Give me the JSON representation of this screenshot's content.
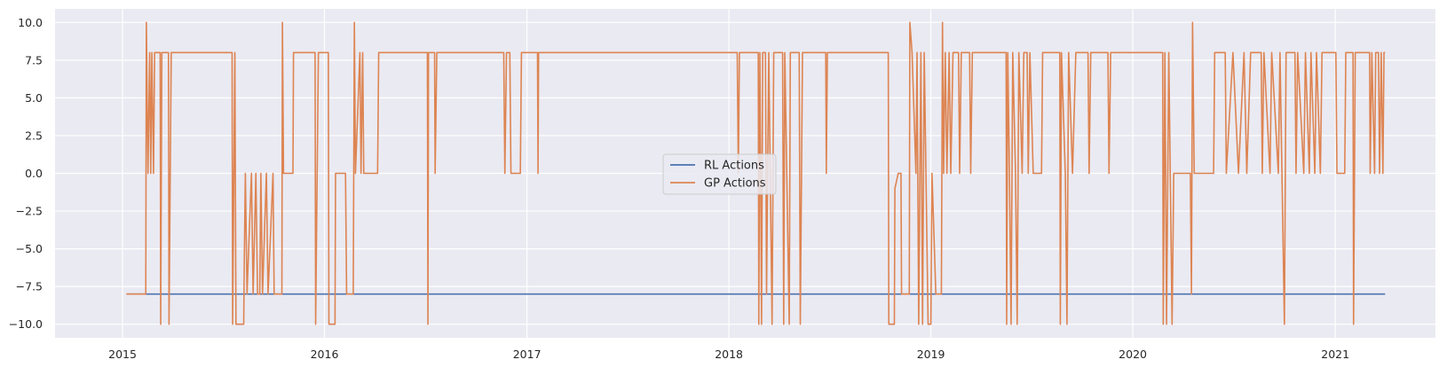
{
  "chart_data": {
    "type": "line",
    "title": "",
    "xlabel": "",
    "ylabel": "",
    "grid": true,
    "legend_position": "center",
    "x_ticks": [
      "2015",
      "2016",
      "2017",
      "2018",
      "2019",
      "2020",
      "2021"
    ],
    "y_ticks": [
      "10.0",
      "7.5",
      "5.0",
      "2.5",
      "0.0",
      "−2.5",
      "−5.0",
      "−7.5",
      "−10.0"
    ],
    "xlim": [
      "2014-09-01",
      "2021-07-01"
    ],
    "ylim": [
      -10.9,
      10.9
    ],
    "series": [
      {
        "name": "RL Actions",
        "color": "#4c72b0",
        "points": [
          [
            "2015-01-08",
            -8
          ],
          [
            "2021-04-01",
            -8
          ]
        ]
      },
      {
        "name": "GP Actions",
        "color": "#dd8452",
        "points": [
          [
            "2015-01-08",
            -8
          ],
          [
            "2015-02-12",
            -8
          ],
          [
            "2015-02-13",
            10
          ],
          [
            "2015-02-16",
            0
          ],
          [
            "2015-02-19",
            8
          ],
          [
            "2015-02-21",
            0
          ],
          [
            "2015-02-23",
            8
          ],
          [
            "2015-02-26",
            0
          ],
          [
            "2015-02-28",
            8
          ],
          [
            "2015-03-10",
            8
          ],
          [
            "2015-03-11",
            -10
          ],
          [
            "2015-03-13",
            8
          ],
          [
            "2015-03-25",
            8
          ],
          [
            "2015-03-26",
            -10
          ],
          [
            "2015-03-30",
            8
          ],
          [
            "2015-07-18",
            8
          ],
          [
            "2015-07-19",
            -10
          ],
          [
            "2015-07-23",
            8
          ],
          [
            "2015-07-25",
            -10
          ],
          [
            "2015-08-08",
            -10
          ],
          [
            "2015-08-09",
            -6
          ],
          [
            "2015-08-11",
            0
          ],
          [
            "2015-08-14",
            -8
          ],
          [
            "2015-08-22",
            0
          ],
          [
            "2015-08-25",
            -8
          ],
          [
            "2015-08-30",
            0
          ],
          [
            "2015-09-02",
            -8
          ],
          [
            "2015-09-06",
            -8
          ],
          [
            "2015-09-08",
            0
          ],
          [
            "2015-09-11",
            -8
          ],
          [
            "2015-09-18",
            0
          ],
          [
            "2015-09-21",
            -8
          ],
          [
            "2015-09-30",
            0
          ],
          [
            "2015-10-02",
            -8
          ],
          [
            "2015-10-16",
            -8
          ],
          [
            "2015-10-17",
            10
          ],
          [
            "2015-10-19",
            0
          ],
          [
            "2015-11-05",
            0
          ],
          [
            "2015-11-06",
            8
          ],
          [
            "2015-12-15",
            8
          ],
          [
            "2015-12-16",
            -10
          ],
          [
            "2015-12-21",
            8
          ],
          [
            "2016-01-08",
            8
          ],
          [
            "2016-01-09",
            -10
          ],
          [
            "2016-01-20",
            -10
          ],
          [
            "2016-01-21",
            0
          ],
          [
            "2016-02-08",
            0
          ],
          [
            "2016-02-10",
            -8
          ],
          [
            "2016-02-22",
            -8
          ],
          [
            "2016-02-24",
            10
          ],
          [
            "2016-02-26",
            0
          ],
          [
            "2016-03-05",
            8
          ],
          [
            "2016-03-07",
            0
          ],
          [
            "2016-03-10",
            8
          ],
          [
            "2016-03-12",
            0
          ],
          [
            "2016-04-06",
            0
          ],
          [
            "2016-04-08",
            8
          ],
          [
            "2016-07-05",
            8
          ],
          [
            "2016-07-06",
            -10
          ],
          [
            "2016-07-07",
            8
          ],
          [
            "2016-07-18",
            8
          ],
          [
            "2016-07-19",
            0
          ],
          [
            "2016-07-22",
            8
          ],
          [
            "2016-11-20",
            8
          ],
          [
            "2016-11-22",
            0
          ],
          [
            "2016-11-25",
            8
          ],
          [
            "2016-12-01",
            8
          ],
          [
            "2016-12-03",
            0
          ],
          [
            "2016-12-20",
            0
          ],
          [
            "2016-12-22",
            8
          ],
          [
            "2017-01-20",
            8
          ],
          [
            "2017-01-21",
            0
          ],
          [
            "2017-01-22",
            8
          ],
          [
            "2018-01-16",
            8
          ],
          [
            "2018-01-18",
            0
          ],
          [
            "2018-01-20",
            8
          ],
          [
            "2018-02-23",
            8
          ],
          [
            "2018-02-24",
            -10
          ],
          [
            "2018-02-26",
            8
          ],
          [
            "2018-03-01",
            -10
          ],
          [
            "2018-03-03",
            8
          ],
          [
            "2018-03-08",
            8
          ],
          [
            "2018-03-10",
            -8
          ],
          [
            "2018-03-14",
            8
          ],
          [
            "2018-03-20",
            -10
          ],
          [
            "2018-03-23",
            8
          ],
          [
            "2018-04-08",
            8
          ],
          [
            "2018-04-10",
            -10
          ],
          [
            "2018-04-12",
            8
          ],
          [
            "2018-04-20",
            -10
          ],
          [
            "2018-04-22",
            8
          ],
          [
            "2018-05-08",
            8
          ],
          [
            "2018-05-10",
            -10
          ],
          [
            "2018-05-14",
            8
          ],
          [
            "2018-06-25",
            8
          ],
          [
            "2018-06-26",
            0
          ],
          [
            "2018-06-28",
            8
          ],
          [
            "2018-10-16",
            8
          ],
          [
            "2018-10-17",
            -10
          ],
          [
            "2018-10-27",
            -10
          ],
          [
            "2018-10-28",
            -1
          ],
          [
            "2018-11-03",
            0
          ],
          [
            "2018-11-08",
            0
          ],
          [
            "2018-11-09",
            -8
          ],
          [
            "2018-11-23",
            -8
          ],
          [
            "2018-11-24",
            10
          ],
          [
            "2018-11-28",
            8
          ],
          [
            "2018-12-05",
            0
          ],
          [
            "2018-12-07",
            8
          ],
          [
            "2018-12-10",
            -10
          ],
          [
            "2018-12-14",
            8
          ],
          [
            "2018-12-17",
            -10
          ],
          [
            "2018-12-20",
            8
          ],
          [
            "2018-12-27",
            -10
          ],
          [
            "2019-01-01",
            -10
          ],
          [
            "2019-01-03",
            0
          ],
          [
            "2019-01-10",
            -8
          ],
          [
            "2019-01-20",
            -8
          ],
          [
            "2019-01-22",
            10
          ],
          [
            "2019-01-24",
            0
          ],
          [
            "2019-01-27",
            8
          ],
          [
            "2019-01-30",
            0
          ],
          [
            "2019-02-03",
            8
          ],
          [
            "2019-02-06",
            0
          ],
          [
            "2019-02-10",
            8
          ],
          [
            "2019-02-20",
            8
          ],
          [
            "2019-02-22",
            0
          ],
          [
            "2019-02-25",
            8
          ],
          [
            "2019-03-12",
            8
          ],
          [
            "2019-03-14",
            0
          ],
          [
            "2019-03-17",
            8
          ],
          [
            "2019-05-17",
            8
          ],
          [
            "2019-05-18",
            -10
          ],
          [
            "2019-05-20",
            8
          ],
          [
            "2019-05-23",
            0
          ],
          [
            "2019-05-26",
            -10
          ],
          [
            "2019-05-29",
            8
          ],
          [
            "2019-06-03",
            0
          ],
          [
            "2019-06-06",
            -10
          ],
          [
            "2019-06-09",
            8
          ],
          [
            "2019-06-15",
            0
          ],
          [
            "2019-06-18",
            8
          ],
          [
            "2019-06-24",
            8
          ],
          [
            "2019-06-26",
            0
          ],
          [
            "2019-06-29",
            8
          ],
          [
            "2019-07-05",
            0
          ],
          [
            "2019-07-20",
            0
          ],
          [
            "2019-07-22",
            8
          ],
          [
            "2019-08-22",
            8
          ],
          [
            "2019-08-23",
            -10
          ],
          [
            "2019-08-25",
            8
          ],
          [
            "2019-09-01",
            0
          ],
          [
            "2019-09-04",
            -10
          ],
          [
            "2019-09-07",
            8
          ],
          [
            "2019-09-14",
            0
          ],
          [
            "2019-09-20",
            8
          ],
          [
            "2019-10-12",
            8
          ],
          [
            "2019-10-14",
            0
          ],
          [
            "2019-10-17",
            8
          ],
          [
            "2019-11-17",
            8
          ],
          [
            "2019-11-19",
            0
          ],
          [
            "2019-11-22",
            8
          ],
          [
            "2020-02-24",
            8
          ],
          [
            "2020-02-25",
            -10
          ],
          [
            "2020-02-28",
            8
          ],
          [
            "2020-03-02",
            -10
          ],
          [
            "2020-03-06",
            8
          ],
          [
            "2020-03-12",
            -10
          ],
          [
            "2020-03-15",
            0
          ],
          [
            "2020-04-14",
            0
          ],
          [
            "2020-04-16",
            -8
          ],
          [
            "2020-04-18",
            10
          ],
          [
            "2020-04-21",
            0
          ],
          [
            "2020-05-26",
            0
          ],
          [
            "2020-05-28",
            8
          ],
          [
            "2020-06-16",
            8
          ],
          [
            "2020-06-18",
            0
          ],
          [
            "2020-06-30",
            8
          ],
          [
            "2020-07-10",
            0
          ],
          [
            "2020-07-20",
            8
          ],
          [
            "2020-07-25",
            0
          ],
          [
            "2020-08-01",
            8
          ],
          [
            "2020-08-20",
            8
          ],
          [
            "2020-08-22",
            0
          ],
          [
            "2020-08-25",
            8
          ],
          [
            "2020-09-05",
            0
          ],
          [
            "2020-09-08",
            8
          ],
          [
            "2020-09-20",
            0
          ],
          [
            "2020-09-23",
            8
          ],
          [
            "2020-10-01",
            -10
          ],
          [
            "2020-10-04",
            8
          ],
          [
            "2020-10-20",
            8
          ],
          [
            "2020-10-22",
            0
          ],
          [
            "2020-10-25",
            8
          ],
          [
            "2020-11-05",
            0
          ],
          [
            "2020-11-08",
            8
          ],
          [
            "2020-11-15",
            0
          ],
          [
            "2020-11-18",
            8
          ],
          [
            "2020-11-25",
            0
          ],
          [
            "2020-11-28",
            8
          ],
          [
            "2020-12-05",
            0
          ],
          [
            "2020-12-08",
            8
          ],
          [
            "2021-01-02",
            8
          ],
          [
            "2021-01-04",
            0
          ],
          [
            "2021-01-18",
            0
          ],
          [
            "2021-01-20",
            8
          ],
          [
            "2021-02-02",
            8
          ],
          [
            "2021-02-03",
            -10
          ],
          [
            "2021-02-06",
            8
          ],
          [
            "2021-03-04",
            8
          ],
          [
            "2021-03-05",
            0
          ],
          [
            "2021-03-08",
            8
          ],
          [
            "2021-03-13",
            0
          ],
          [
            "2021-03-15",
            8
          ],
          [
            "2021-03-20",
            8
          ],
          [
            "2021-03-22",
            0
          ],
          [
            "2021-03-25",
            8
          ],
          [
            "2021-03-28",
            0
          ],
          [
            "2021-03-30",
            8
          ],
          [
            "2021-04-01",
            8
          ]
        ]
      }
    ]
  }
}
